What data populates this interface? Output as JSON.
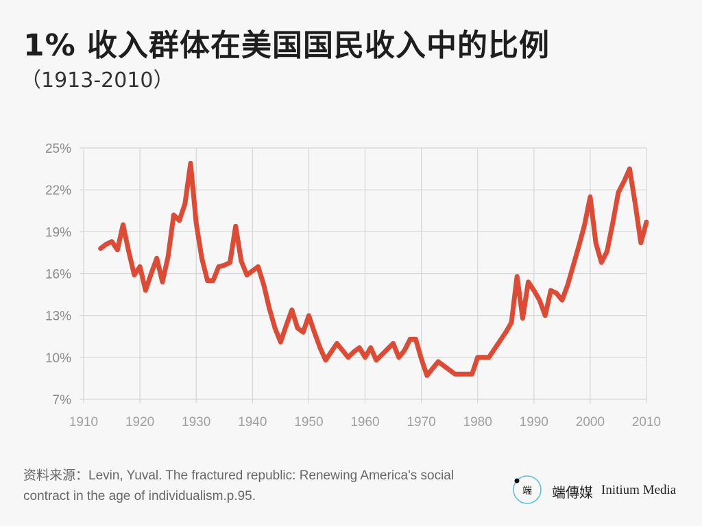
{
  "header": {
    "title": "1% 收入群体在美国国民收入中的比例",
    "subtitle": "（1913-2010）"
  },
  "source": {
    "text": "资料来源：Levin, Yuval. The fractured republic: Renewing America's social contract in the age of individualism.p.95."
  },
  "brand": {
    "name_cn": "端傳媒",
    "name_en": "Initium Media",
    "logo_text": "端",
    "colors": {
      "ring": "#5bc2d9",
      "text": "#222222"
    }
  },
  "chart_data": {
    "type": "line",
    "title": "1% 收入群体在美国国民收入中的比例",
    "subtitle": "（1913-2010）",
    "xlabel": "",
    "ylabel": "",
    "xlim": [
      1910,
      2010
    ],
    "ylim": [
      7,
      25
    ],
    "x_ticks": [
      1910,
      1920,
      1930,
      1940,
      1950,
      1960,
      1970,
      1980,
      1990,
      2000,
      2010
    ],
    "x_tick_labels": [
      "1910",
      "1920",
      "1930",
      "1940",
      "1950",
      "1960",
      "1970",
      "1980",
      "1990",
      "2000",
      "2010"
    ],
    "y_ticks": [
      7,
      10,
      13,
      16,
      19,
      22,
      25
    ],
    "y_tick_labels": [
      "7%",
      "10%",
      "13%",
      "16%",
      "19%",
      "22%",
      "25%"
    ],
    "grid": true,
    "line_color": "#dd4b35",
    "series": [
      {
        "name": "",
        "x": [
          1913,
          1914,
          1915,
          1916,
          1917,
          1918,
          1919,
          1920,
          1921,
          1922,
          1923,
          1924,
          1925,
          1926,
          1927,
          1928,
          1929,
          1930,
          1931,
          1932,
          1933,
          1934,
          1935,
          1936,
          1937,
          1938,
          1939,
          1940,
          1941,
          1942,
          1943,
          1944,
          1945,
          1946,
          1947,
          1948,
          1949,
          1950,
          1951,
          1952,
          1953,
          1954,
          1955,
          1956,
          1957,
          1958,
          1959,
          1960,
          1961,
          1962,
          1963,
          1964,
          1965,
          1966,
          1967,
          1968,
          1969,
          1970,
          1971,
          1972,
          1973,
          1974,
          1975,
          1976,
          1977,
          1978,
          1979,
          1980,
          1981,
          1982,
          1983,
          1984,
          1985,
          1986,
          1987,
          1988,
          1989,
          1990,
          1991,
          1992,
          1993,
          1994,
          1995,
          1996,
          1997,
          1998,
          1999,
          2000,
          2001,
          2002,
          2003,
          2004,
          2005,
          2006,
          2007,
          2008,
          2009,
          2010
        ],
        "y": [
          17.8,
          18.1,
          18.3,
          17.7,
          19.5,
          17.6,
          15.9,
          16.5,
          14.8,
          16.0,
          17.1,
          15.4,
          17.2,
          20.2,
          19.8,
          21.0,
          23.9,
          19.6,
          17.1,
          15.5,
          15.5,
          16.5,
          16.6,
          16.8,
          19.4,
          16.9,
          15.9,
          16.2,
          16.5,
          15.2,
          13.5,
          12.1,
          11.1,
          12.3,
          13.4,
          12.1,
          11.8,
          13.0,
          11.8,
          10.7,
          9.8,
          10.4,
          11.0,
          10.5,
          10.0,
          10.4,
          10.7,
          10.0,
          10.7,
          9.8,
          10.2,
          10.6,
          11.0,
          10.0,
          10.5,
          11.3,
          11.3,
          9.9,
          8.7,
          9.2,
          9.7,
          9.4,
          9.1,
          8.8,
          8.8,
          8.8,
          8.8,
          10.0,
          10.0,
          10.0,
          10.6,
          11.2,
          11.8,
          12.5,
          15.8,
          12.8,
          15.4,
          14.8,
          14.1,
          13.0,
          14.8,
          14.6,
          14.1,
          15.2,
          16.6,
          18.0,
          19.5,
          21.5,
          18.2,
          16.8,
          17.6,
          19.6,
          21.8,
          22.6,
          23.5,
          21.0,
          18.2,
          19.7
        ]
      }
    ]
  }
}
